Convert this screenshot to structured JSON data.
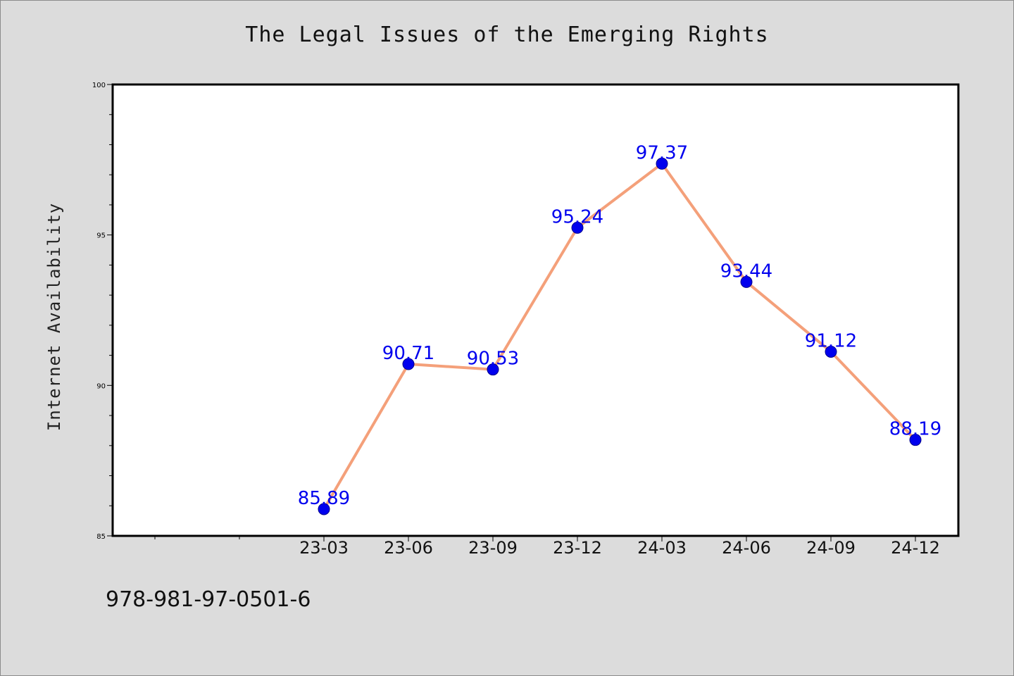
{
  "chart_data": {
    "type": "line",
    "title": "The Legal Issues of the Emerging Rights",
    "xlabel": "",
    "ylabel": "Internet Availability",
    "categories": [
      "23-03",
      "23-06",
      "23-09",
      "23-12",
      "24-03",
      "24-06",
      "24-09",
      "24-12"
    ],
    "values": [
      85.89,
      90.71,
      90.53,
      95.24,
      97.37,
      93.44,
      91.12,
      88.19
    ],
    "data_labels": [
      "85.89",
      "90.71",
      "90.53",
      "95.24",
      "97.37",
      "93.44",
      "91.12",
      "88.19"
    ],
    "ylim": [
      85,
      100
    ],
    "y_ticks": [
      "85",
      "90",
      "95",
      "100"
    ],
    "grid": false,
    "line_color": "#f4a07a",
    "marker_color": "#0000ee",
    "label_color": "#0000ee"
  },
  "footer": {
    "isbn": "978-981-97-0501-6"
  },
  "colors": {
    "background": "#dcdcdc",
    "plot_background": "#ffffff"
  }
}
